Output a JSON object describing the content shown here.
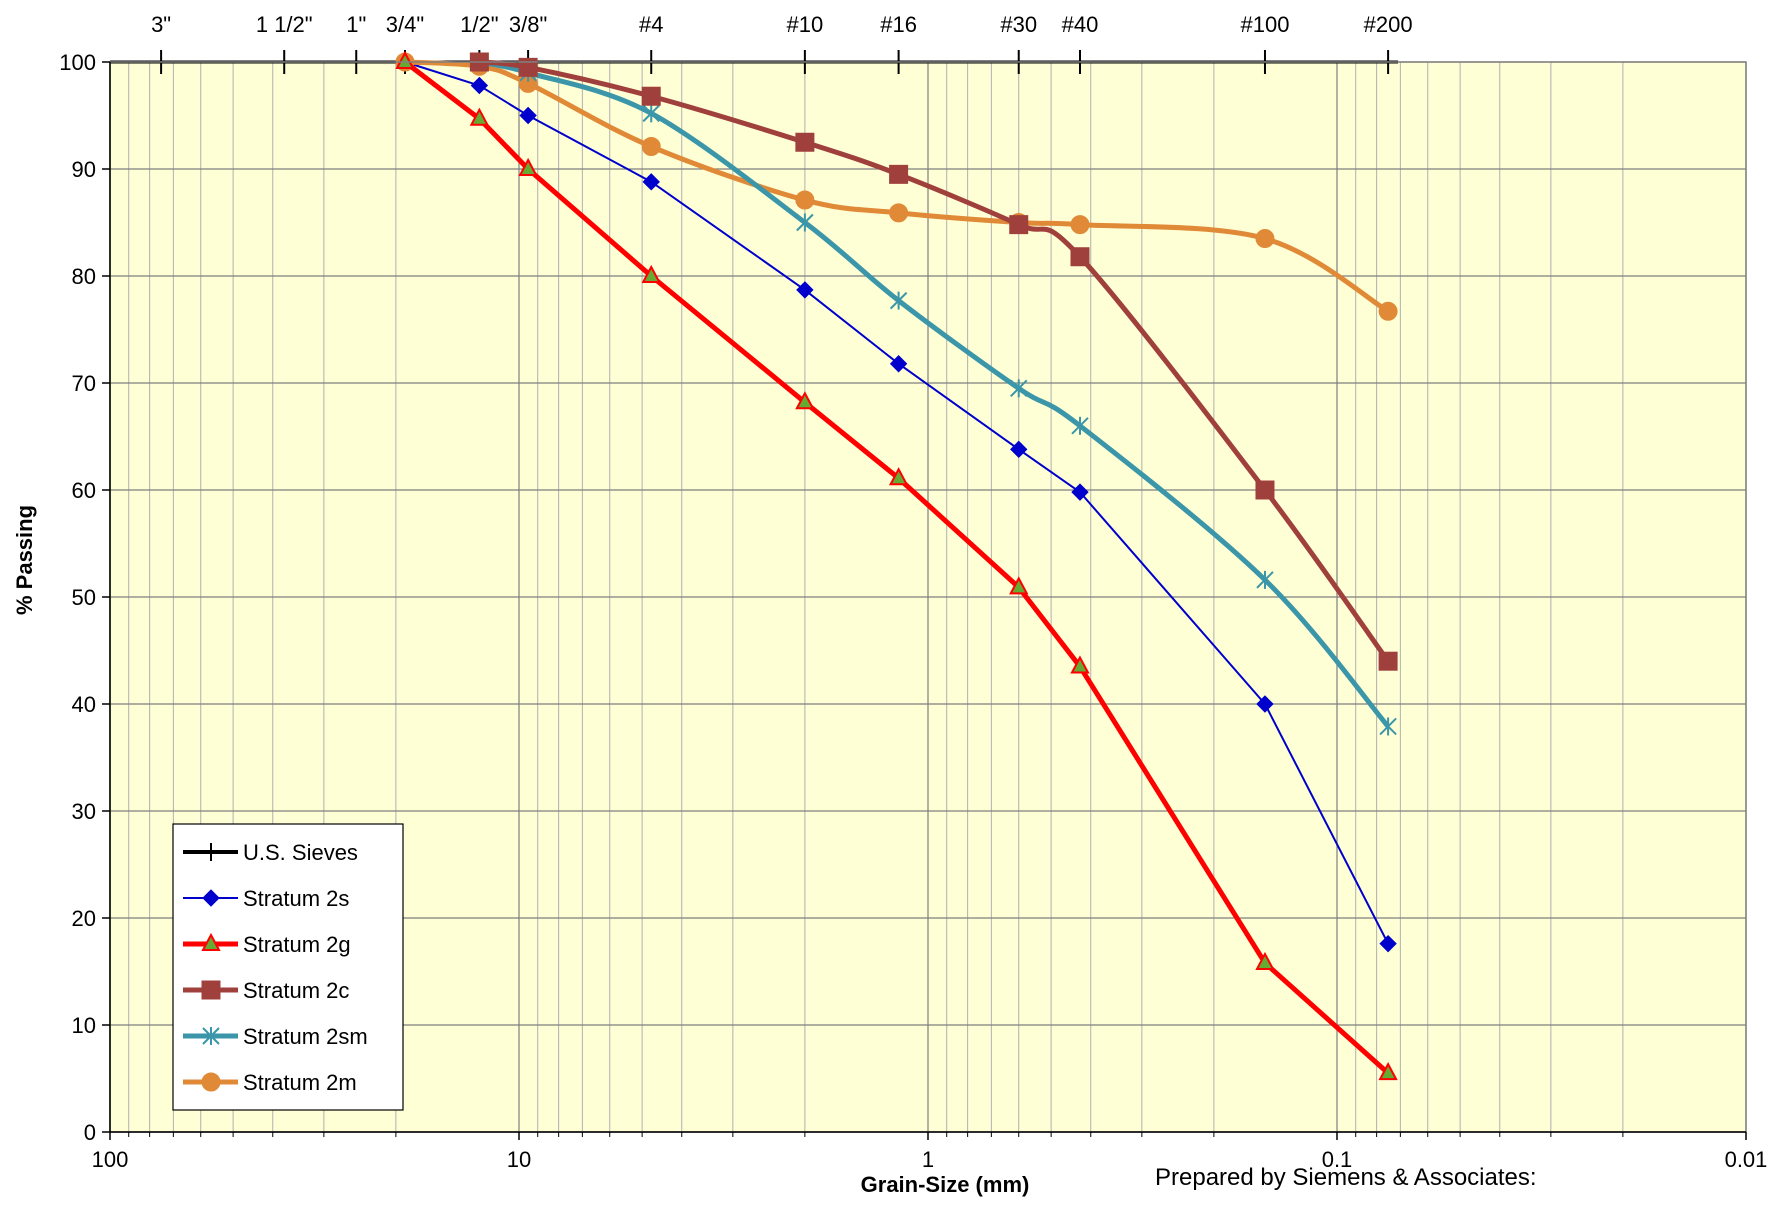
{
  "chart_data": {
    "type": "line",
    "x_scale": "log-reversed",
    "xlim": [
      100,
      0.01
    ],
    "ylim": [
      0,
      100
    ],
    "xlabel": "Grain-Size (mm)",
    "ylabel": "% Passing",
    "grid": true,
    "legend_position": "bottom-left",
    "x_tick_labels": [
      {
        "value": 100,
        "label": "100"
      },
      {
        "value": 10,
        "label": "10"
      },
      {
        "value": 1,
        "label": "1"
      },
      {
        "value": 0.1,
        "label": "0.1"
      },
      {
        "value": 0.01,
        "label": "0.01"
      }
    ],
    "y_tick_labels": [
      0,
      10,
      20,
      30,
      40,
      50,
      60,
      70,
      80,
      90,
      100
    ],
    "sieve_axis": {
      "name": "U.S. Sieves",
      "ticks": [
        {
          "label": "3\"",
          "mm": 75
        },
        {
          "label": "1 1/2\"",
          "mm": 37.5
        },
        {
          "label": "1\"",
          "mm": 25
        },
        {
          "label": "3/4\"",
          "mm": 19
        },
        {
          "label": "1/2\"",
          "mm": 12.5
        },
        {
          "label": "3/8\"",
          "mm": 9.5
        },
        {
          "label": "#4",
          "mm": 4.75
        },
        {
          "label": "#10",
          "mm": 2
        },
        {
          "label": "#16",
          "mm": 1.18
        },
        {
          "label": "#30",
          "mm": 0.6
        },
        {
          "label": "#40",
          "mm": 0.425
        },
        {
          "label": "#100",
          "mm": 0.15
        },
        {
          "label": "#200",
          "mm": 0.075
        }
      ]
    },
    "series": [
      {
        "name": "Stratum 2s",
        "color": "#0000CC",
        "marker": "diamond",
        "smooth": false,
        "x": [
          19,
          12.5,
          9.5,
          4.75,
          2,
          1.18,
          0.6,
          0.425,
          0.15,
          0.075
        ],
        "y": [
          100,
          97.8,
          95,
          88.8,
          78.7,
          71.8,
          63.8,
          59.8,
          40,
          17.6
        ]
      },
      {
        "name": "Stratum 2g",
        "color": "#FF0000",
        "marker": "triangle",
        "marker_fill": "#66AA33",
        "smooth": false,
        "x": [
          19,
          12.5,
          9.5,
          4.75,
          2,
          1.18,
          0.6,
          0.425,
          0.15,
          0.075
        ],
        "y": [
          100,
          94.7,
          90,
          80,
          68.2,
          61.1,
          50.9,
          43.5,
          15.8,
          5.5
        ]
      },
      {
        "name": "Stratum 2c",
        "color": "#A0403C",
        "marker": "square",
        "smooth": true,
        "x": [
          12.5,
          9.5,
          4.75,
          2,
          1.18,
          0.6,
          0.425,
          0.15,
          0.075
        ],
        "y": [
          100,
          99.5,
          96.8,
          92.5,
          89.5,
          84.8,
          81.8,
          60,
          44
        ]
      },
      {
        "name": "Stratum 2sm",
        "color": "#3A96A8",
        "marker": "asterisk",
        "smooth": true,
        "x": [
          12.5,
          9.5,
          4.75,
          2,
          1.18,
          0.6,
          0.425,
          0.15,
          0.075
        ],
        "y": [
          100,
          99,
          95.2,
          85,
          77.7,
          69.5,
          66,
          51.6,
          37.9
        ]
      },
      {
        "name": "Stratum 2m",
        "color": "#E08A38",
        "marker": "circle",
        "smooth": true,
        "x": [
          19,
          12.5,
          9.5,
          4.75,
          2,
          1.18,
          0.6,
          0.425,
          0.15,
          0.075
        ],
        "y": [
          100,
          99.6,
          98,
          92.1,
          87.1,
          85.9,
          85,
          84.8,
          83.5,
          76.7
        ]
      }
    ],
    "annotations": [
      "Prepared by Siemens & Associates:"
    ]
  },
  "colors": {
    "plot_background": "#FFFFD6",
    "grid_major": "#7F7F7F",
    "grid_minor": "#B0B0B0"
  }
}
